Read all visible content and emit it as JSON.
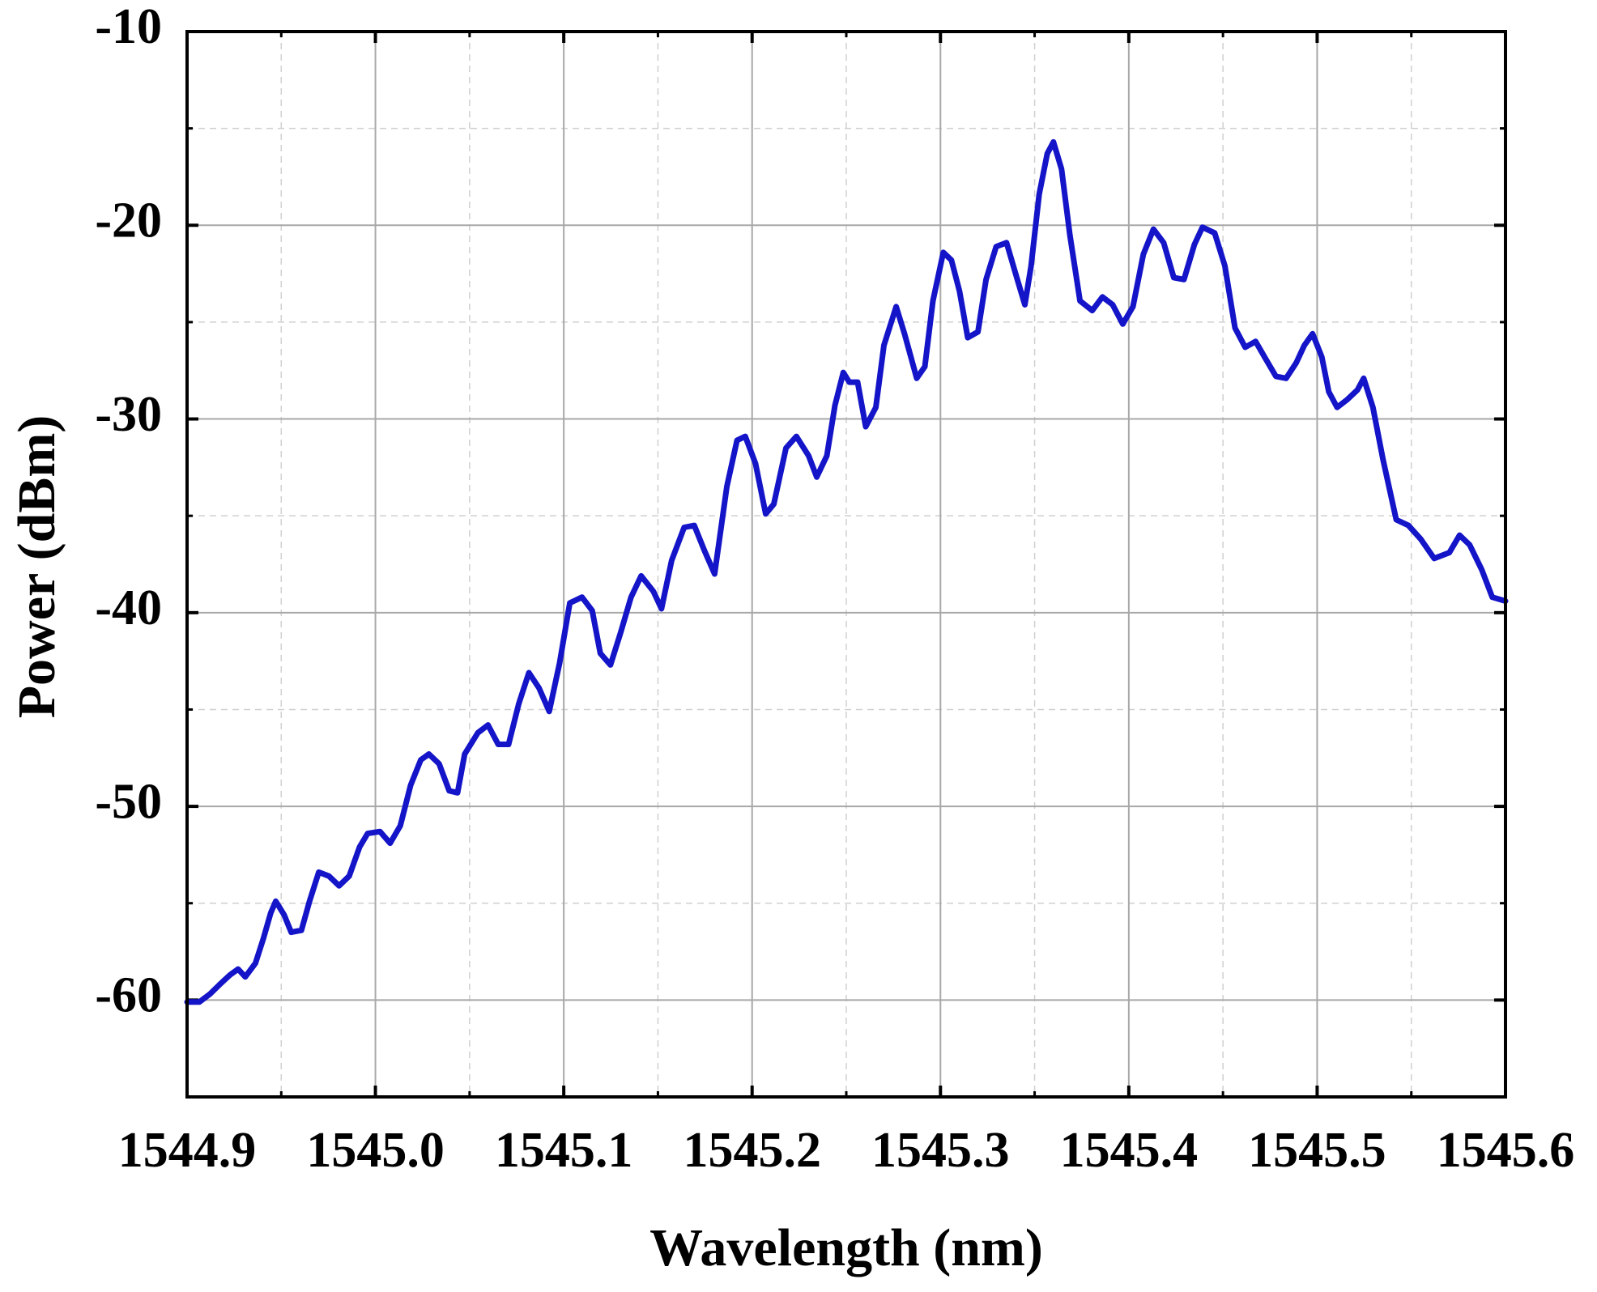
{
  "chart_data": {
    "type": "line",
    "x_label": "Wavelength (nm)",
    "y_label": "Power (dBm)",
    "xlim": [
      1544.9,
      1545.6
    ],
    "ylim": [
      -65,
      -10
    ],
    "xticks": [
      1544.9,
      {
        "value": 1545,
        "label": "1545.0"
      },
      1545.1,
      1545.2,
      1545.3,
      1545.4,
      1545.5,
      1545.6
    ],
    "yticks": [
      -60,
      -50,
      -40,
      -30,
      -20,
      -10
    ],
    "grid": true,
    "minor_grid": true,
    "series": [
      {
        "color": "#1414c8",
        "x": [
          1544.9,
          1544.9065,
          1544.912,
          1544.9173,
          1544.9228,
          1544.9271,
          1544.9309,
          1544.9363,
          1544.9406,
          1544.9444,
          1544.9471,
          1544.9515,
          1544.9553,
          1544.9607,
          1544.965,
          1544.9699,
          1544.9753,
          1544.9807,
          1544.9861,
          1544.9916,
          1544.9959,
          1545.0024,
          1545.0078,
          1545.0132,
          1545.0187,
          1545.0241,
          1545.0284,
          1545.0338,
          1545.0392,
          1545.0436,
          1545.0474,
          1545.0544,
          1545.0598,
          1545.0652,
          1545.0707,
          1545.0761,
          1545.0815,
          1545.0869,
          1545.0923,
          1545.0978,
          1545.1032,
          1545.1097,
          1545.1151,
          1545.1194,
          1545.1248,
          1545.1303,
          1545.1357,
          1545.1411,
          1545.1476,
          1545.1519,
          1545.1573,
          1545.1639,
          1545.1693,
          1545.1747,
          1545.1801,
          1545.1866,
          1545.192,
          1545.1964,
          1545.2018,
          1545.2072,
          1545.2115,
          1545.218,
          1545.2235,
          1545.23,
          1545.2343,
          1545.2397,
          1545.244,
          1545.2484,
          1545.2516,
          1545.256,
          1545.2603,
          1545.2657,
          1545.27,
          1545.2765,
          1545.2809,
          1545.2874,
          1545.2917,
          1545.296,
          1545.3015,
          1545.3058,
          1545.3101,
          1545.3145,
          1545.3199,
          1545.3242,
          1545.3296,
          1545.3351,
          1545.3405,
          1545.3448,
          1545.3481,
          1545.3524,
          1545.3567,
          1545.36,
          1545.3643,
          1545.3687,
          1545.3741,
          1545.3806,
          1545.386,
          1545.3914,
          1545.3968,
          1545.4022,
          1545.4077,
          1545.4131,
          1545.4185,
          1545.4239,
          1545.4293,
          1545.4348,
          1545.4391,
          1545.4456,
          1545.451,
          1545.4564,
          1545.4618,
          1545.4673,
          1545.4727,
          1545.4781,
          1545.4835,
          1545.4889,
          1545.4932,
          1545.4976,
          1545.5025,
          1545.5062,
          1545.5106,
          1545.516,
          1545.5214,
          1545.5247,
          1545.5296,
          1545.535,
          1545.542,
          1545.5485,
          1545.555,
          1545.5621,
          1545.5702,
          1545.5756,
          1545.581,
          1545.5875,
          1545.593,
          1545.6
        ],
        "values": [
          -60.1,
          -60.1,
          -59.7,
          -59.2,
          -58.7,
          -58.4,
          -58.8,
          -58.1,
          -56.8,
          -55.5,
          -54.9,
          -55.6,
          -56.5,
          -56.4,
          -54.9,
          -53.4,
          -53.6,
          -54.1,
          -53.6,
          -52.1,
          -51.4,
          -51.3,
          -51.9,
          -51.0,
          -48.9,
          -47.6,
          -47.3,
          -47.8,
          -49.2,
          -49.3,
          -47.3,
          -46.2,
          -45.8,
          -46.8,
          -46.8,
          -44.7,
          -43.1,
          -43.9,
          -45.1,
          -42.6,
          -39.5,
          -39.2,
          -39.9,
          -42.1,
          -42.7,
          -41.0,
          -39.2,
          -38.1,
          -38.9,
          -39.8,
          -37.3,
          -35.6,
          -35.5,
          -36.8,
          -38.0,
          -33.5,
          -31.1,
          -30.9,
          -32.3,
          -34.9,
          -34.4,
          -31.5,
          -30.9,
          -31.9,
          -33.0,
          -31.9,
          -29.3,
          -27.6,
          -28.1,
          -28.1,
          -30.4,
          -29.4,
          -26.2,
          -24.2,
          -25.6,
          -27.9,
          -27.3,
          -23.9,
          -21.4,
          -21.8,
          -23.4,
          -25.8,
          -25.5,
          -22.8,
          -21.1,
          -20.9,
          -22.7,
          -24.1,
          -22.1,
          -18.4,
          -16.3,
          -15.7,
          -17.1,
          -20.5,
          -23.9,
          -24.4,
          -23.7,
          -24.1,
          -25.1,
          -24.2,
          -21.5,
          -20.2,
          -20.9,
          -22.7,
          -22.8,
          -21.0,
          -20.1,
          -20.4,
          -22.1,
          -25.3,
          -26.3,
          -26.0,
          -26.9,
          -27.8,
          -27.9,
          -27.1,
          -26.2,
          -25.6,
          -26.8,
          -28.6,
          -29.4,
          -29.0,
          -28.5,
          -27.9,
          -29.4,
          -32.1,
          -35.2,
          -35.5,
          -36.2,
          -37.2,
          -36.9,
          -36.0,
          -36.5,
          -37.8,
          -39.2,
          -39.4
        ]
      }
    ]
  }
}
